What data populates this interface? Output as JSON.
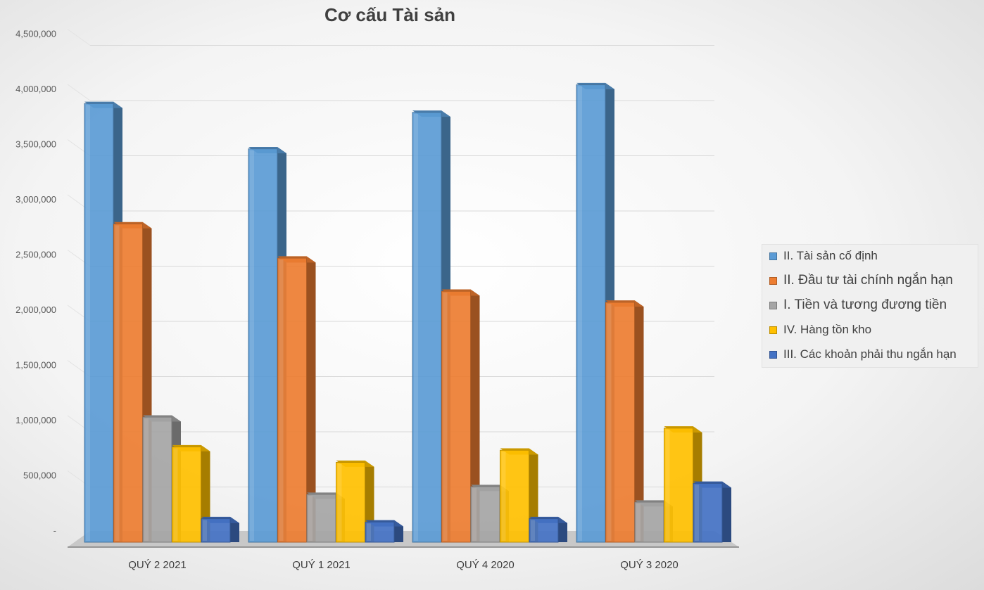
{
  "chart_data": {
    "type": "bar",
    "title": "Cơ cấu  Tài sản",
    "categories": [
      "QUÝ 2 2021",
      "QUÝ 1 2021",
      "QUÝ 4 2020",
      "QUÝ 3 2020"
    ],
    "series": [
      {
        "name": "II. Tài sản cố định",
        "values": [
          3990000,
          3580000,
          3910000,
          4160000
        ]
      },
      {
        "name": "II. Đầu tư tài chính ngắn hạn",
        "values": [
          2900000,
          2590000,
          2290000,
          2190000
        ]
      },
      {
        "name": "I. Tiền và  tương đương tiền",
        "values": [
          1150000,
          450000,
          520000,
          380000
        ]
      },
      {
        "name": "IV. Hàng tồn kho",
        "values": [
          880000,
          740000,
          850000,
          1050000
        ]
      },
      {
        "name": "III. Các khoản phải thu ngắn hạn",
        "values": [
          230000,
          200000,
          230000,
          550000
        ]
      }
    ],
    "colors": [
      "#5b9bd5",
      "#ed7d31",
      "#a5a5a5",
      "#ffc000",
      "#4472c4"
    ],
    "yticks": [
      "-",
      "500,000",
      "1,000,000",
      "1,500,000",
      "2,000,000",
      "2,500,000",
      "3,000,000",
      "3,500,000",
      "4,000,000",
      "4,500,000"
    ],
    "ylim": [
      0,
      4500000
    ],
    "grid": true,
    "legend_position": "right",
    "style": "3d-clustered-column"
  }
}
